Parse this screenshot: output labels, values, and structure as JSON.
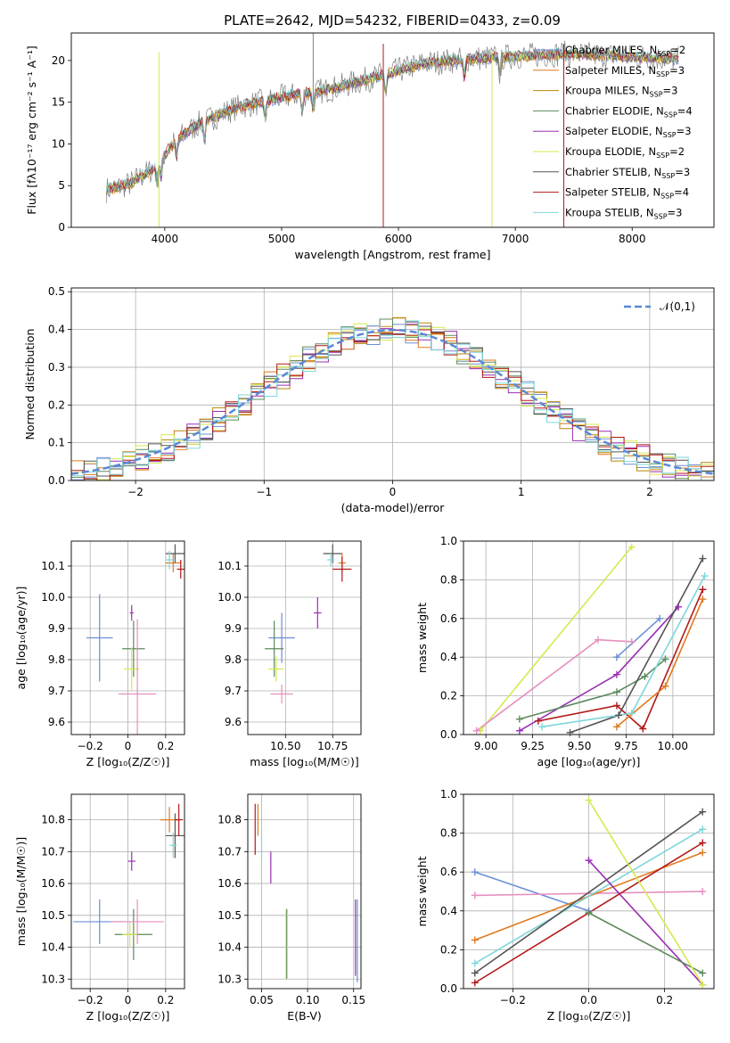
{
  "figure_title": "PLATE=2642, MJD=54232, FIBERID=0433, z=0.09",
  "colors": {
    "Chabrier MILES": "#6a8fd6",
    "Salpeter MILES": "#e07a1f",
    "Kroupa MILES": "#b8860b",
    "Chabrier ELODIE": "#5b8a5b",
    "Salpeter ELODIE": "#9a2fb3",
    "Kroupa ELODIE": "#d7e84e",
    "Chabrier STELIB": "#555555",
    "Salpeter STELIB": "#b31919",
    "Kroupa STELIB": "#7fd6dc",
    "pink": "#e68fbf",
    "gauss": "#5b88d6"
  },
  "chart_data": [
    {
      "id": "spectrum",
      "type": "line",
      "title": "PLATE=2642, MJD=54232, FIBERID=0433, z=0.09",
      "xlabel": "wavelength [Angstrom, rest frame]",
      "ylabel": "Flux [fλ10⁻¹⁷ erg cm⁻² s⁻¹ A⁻¹]",
      "xlim": [
        3200,
        8700
      ],
      "ylim": [
        0,
        23.3
      ],
      "xticks": [
        4000,
        5000,
        6000,
        7000,
        8000
      ],
      "yticks": [
        0,
        5,
        10,
        15,
        20
      ],
      "legend_position": "upper right",
      "legend": [
        {
          "label": "Chabrier MILES, N",
          "sub": "SSP",
          "suffix": "=2"
        },
        {
          "label": "Salpeter MILES, N",
          "sub": "SSP",
          "suffix": "=3"
        },
        {
          "label": "Kroupa MILES, N",
          "sub": "SSP",
          "suffix": "=3"
        },
        {
          "label": "Chabrier ELODIE, N",
          "sub": "SSP",
          "suffix": "=4"
        },
        {
          "label": "Salpeter ELODIE, N",
          "sub": "SSP",
          "suffix": "=3"
        },
        {
          "label": "Kroupa ELODIE, N",
          "sub": "SSP",
          "suffix": "=2"
        },
        {
          "label": "Chabrier STELIB, N",
          "sub": "SSP",
          "suffix": "=3"
        },
        {
          "label": "Salpeter STELIB, N",
          "sub": "SSP",
          "suffix": "=4"
        },
        {
          "label": "Kroupa STELIB, N",
          "sub": "SSP",
          "suffix": "=3"
        }
      ],
      "continuum": [
        [
          3500,
          4.5
        ],
        [
          3700,
          5.2
        ],
        [
          3900,
          7.0
        ],
        [
          4100,
          10.5
        ],
        [
          4300,
          12.5
        ],
        [
          4600,
          14.3
        ],
        [
          5000,
          15.6
        ],
        [
          5400,
          16.5
        ],
        [
          5800,
          18.0
        ],
        [
          6200,
          19.6
        ],
        [
          6600,
          20.2
        ],
        [
          7000,
          20.5
        ],
        [
          7400,
          20.8
        ],
        [
          7800,
          20.6
        ],
        [
          8200,
          20.3
        ],
        [
          8400,
          20.2
        ]
      ]
    },
    {
      "id": "residuals",
      "type": "line",
      "xlabel": "(data-model)/error",
      "ylabel": "Normed distribution",
      "xlim": [
        -2.5,
        2.5
      ],
      "ylim": [
        0,
        0.51
      ],
      "xticks": [
        -2,
        -1,
        0,
        1,
        2
      ],
      "yticks": [
        0.0,
        0.1,
        0.2,
        0.3,
        0.4,
        0.5
      ],
      "legend": "𝒩(0,1)",
      "series": [
        {
          "name": "𝒩(0,1)",
          "mu": 0,
          "sigma": 1
        }
      ]
    },
    {
      "id": "age_vs_Z",
      "type": "scatter",
      "xlabel": "Z [log₁₀(Z/Z☉)]",
      "ylabel": "age  [log₁₀(age/yr)]",
      "xlim": [
        -0.3,
        0.3
      ],
      "ylim": [
        9.56,
        10.18
      ],
      "xticks": [
        -0.2,
        0.0,
        0.2
      ],
      "yticks": [
        9.6,
        9.7,
        9.8,
        9.9,
        10.0,
        10.1
      ],
      "points": [
        {
          "c": "Chabrier MILES",
          "x": -0.15,
          "y": 9.87,
          "xe": 0.07,
          "ye": 0.14
        },
        {
          "c": "Salpeter MILES",
          "x": 0.24,
          "y": 10.11,
          "xe": 0.04,
          "ye": 0.03
        },
        {
          "c": "Chabrier ELODIE",
          "x": 0.03,
          "y": 9.835,
          "xe": 0.06,
          "ye": 0.09
        },
        {
          "c": "Salpeter ELODIE",
          "x": 0.02,
          "y": 9.95,
          "xe": 0.01,
          "ye": 0.025
        },
        {
          "c": "Kroupa ELODIE",
          "x": 0.02,
          "y": 9.77,
          "xe": 0.04,
          "ye": 0.07
        },
        {
          "c": "Chabrier STELIB",
          "x": 0.25,
          "y": 10.14,
          "xe": 0.05,
          "ye": 0.03
        },
        {
          "c": "Salpeter STELIB",
          "x": 0.28,
          "y": 10.09,
          "xe": 0.02,
          "ye": 0.03
        },
        {
          "c": "Kroupa STELIB",
          "x": 0.22,
          "y": 10.12,
          "xe": 0.02,
          "ye": 0.03
        },
        {
          "c": "pink",
          "x": 0.05,
          "y": 9.69,
          "xe": 0.1,
          "ye": 0.24
        }
      ]
    },
    {
      "id": "age_vs_mass",
      "type": "scatter",
      "xlabel": "mass [log₁₀(M/M☉)]",
      "xlim": [
        10.3,
        10.9
      ],
      "ylim": [
        9.56,
        10.18
      ],
      "xticks": [
        10.5,
        10.75
      ],
      "xticklabels": [
        "10.50",
        "10.75"
      ],
      "yticks": [
        9.6,
        9.7,
        9.8,
        9.9,
        10.0,
        10.1
      ],
      "points": [
        {
          "c": "Chabrier MILES",
          "x": 10.48,
          "y": 9.87,
          "xe": 0.07,
          "ye": 0.08
        },
        {
          "c": "Salpeter MILES",
          "x": 10.8,
          "y": 10.11,
          "xe": 0.02,
          "ye": 0.03
        },
        {
          "c": "Chabrier ELODIE",
          "x": 10.44,
          "y": 9.835,
          "xe": 0.05,
          "ye": 0.09
        },
        {
          "c": "Salpeter ELODIE",
          "x": 10.67,
          "y": 9.95,
          "xe": 0.02,
          "ye": 0.05
        },
        {
          "c": "Kroupa ELODIE",
          "x": 10.45,
          "y": 9.77,
          "xe": 0.04,
          "ye": 0.04
        },
        {
          "c": "Chabrier STELIB",
          "x": 10.75,
          "y": 10.14,
          "xe": 0.05,
          "ye": 0.03
        },
        {
          "c": "Salpeter STELIB",
          "x": 10.8,
          "y": 10.09,
          "xe": 0.05,
          "ye": 0.04
        },
        {
          "c": "Kroupa STELIB",
          "x": 10.74,
          "y": 10.12,
          "xe": 0.02,
          "ye": 0.02
        },
        {
          "c": "pink",
          "x": 10.48,
          "y": 9.69,
          "xe": 0.06,
          "ye": 0.03
        }
      ]
    },
    {
      "id": "mw_vs_age",
      "type": "line",
      "xlabel": "age  [log₁₀(age/yr)]",
      "ylabel": "mass weight",
      "xlim": [
        8.88,
        10.22
      ],
      "ylim": [
        0,
        1.0
      ],
      "xticks": [
        9.0,
        9.25,
        9.5,
        9.75,
        10.0
      ],
      "xticklabels": [
        "9.00",
        "9.25",
        "9.50",
        "9.75",
        "10.00"
      ],
      "yticks": [
        0.0,
        0.2,
        0.4,
        0.6,
        0.8,
        1.0
      ],
      "series": [
        {
          "c": "Kroupa ELODIE",
          "x": [
            8.97,
            9.78
          ],
          "y": [
            0.02,
            0.97
          ]
        },
        {
          "c": "pink",
          "x": [
            8.95,
            9.6,
            9.78
          ],
          "y": [
            0.02,
            0.49,
            0.48
          ]
        },
        {
          "c": "Salpeter ELODIE",
          "x": [
            9.18,
            9.7,
            10.03
          ],
          "y": [
            0.02,
            0.31,
            0.66
          ]
        },
        {
          "c": "Chabrier ELODIE",
          "x": [
            9.18,
            9.7,
            9.85,
            9.96
          ],
          "y": [
            0.08,
            0.22,
            0.3,
            0.39
          ]
        },
        {
          "c": "Salpeter STELIB",
          "x": [
            9.28,
            9.7,
            9.84,
            10.16
          ],
          "y": [
            0.07,
            0.15,
            0.03,
            0.75
          ]
        },
        {
          "c": "Chabrier STELIB",
          "x": [
            9.45,
            9.71,
            10.16
          ],
          "y": [
            0.01,
            0.1,
            0.91
          ]
        },
        {
          "c": "Kroupa STELIB",
          "x": [
            9.3,
            9.78,
            10.17
          ],
          "y": [
            0.04,
            0.11,
            0.82
          ]
        },
        {
          "c": "Salpeter MILES",
          "x": [
            9.7,
            9.96,
            10.16
          ],
          "y": [
            0.04,
            0.25,
            0.7
          ]
        },
        {
          "c": "Chabrier MILES",
          "x": [
            9.7,
            9.93
          ],
          "y": [
            0.4,
            0.6
          ]
        }
      ]
    },
    {
      "id": "mass_vs_Z",
      "type": "scatter",
      "xlabel": "Z [log₁₀(Z/Z☉)]",
      "ylabel": "mass [log₁₀(M/M☉)]",
      "xlim": [
        -0.3,
        0.3
      ],
      "ylim": [
        10.27,
        10.88
      ],
      "xticks": [
        -0.2,
        0.0,
        0.2
      ],
      "yticks": [
        10.3,
        10.4,
        10.5,
        10.6,
        10.7,
        10.8
      ],
      "points": [
        {
          "c": "Chabrier MILES",
          "x": -0.15,
          "y": 10.48,
          "xe": 0.14,
          "ye": 0.07
        },
        {
          "c": "Salpeter MILES",
          "x": 0.22,
          "y": 10.8,
          "xe": 0.05,
          "ye": 0.04
        },
        {
          "c": "Chabrier ELODIE",
          "x": 0.03,
          "y": 10.44,
          "xe": 0.1,
          "ye": 0.08
        },
        {
          "c": "Salpeter ELODIE",
          "x": 0.02,
          "y": 10.67,
          "xe": 0.02,
          "ye": 0.03
        },
        {
          "c": "Kroupa ELODIE",
          "x": 0.01,
          "y": 10.44,
          "xe": 0.04,
          "ye": 0.04
        },
        {
          "c": "Chabrier STELIB",
          "x": 0.25,
          "y": 10.75,
          "xe": 0.05,
          "ye": 0.07
        },
        {
          "c": "Salpeter STELIB",
          "x": 0.27,
          "y": 10.8,
          "xe": 0.02,
          "ye": 0.05
        },
        {
          "c": "Kroupa STELIB",
          "x": 0.24,
          "y": 10.72,
          "xe": 0.02,
          "ye": 0.04
        },
        {
          "c": "pink",
          "x": 0.05,
          "y": 10.48,
          "xe": 0.14,
          "ye": 0.07
        }
      ]
    },
    {
      "id": "mass_vs_ebv",
      "type": "scatter",
      "xlabel": "E(B-V)",
      "xlim": [
        0.035,
        0.158
      ],
      "ylim": [
        10.27,
        10.88
      ],
      "xticks": [
        0.05,
        0.1,
        0.15
      ],
      "xticklabels": [
        "0.05",
        "0.10",
        "0.15"
      ],
      "yticks": [
        10.3,
        10.4,
        10.5,
        10.6,
        10.7,
        10.8
      ],
      "points": [
        {
          "c": "Salpeter STELIB",
          "x": 0.043,
          "y": 10.77,
          "xe": 0,
          "ye": 0.08
        },
        {
          "c": "Salpeter MILES",
          "x": 0.046,
          "y": 10.8,
          "xe": 0,
          "ye": 0.05
        },
        {
          "c": "Kroupa STELIB",
          "x": 0.05,
          "y": 10.72,
          "xe": 0,
          "ye": 0.05
        },
        {
          "c": "Salpeter ELODIE",
          "x": 0.06,
          "y": 10.65,
          "xe": 0,
          "ye": 0.05
        },
        {
          "c": "Chabrier ELODIE",
          "x": 0.077,
          "y": 10.41,
          "xe": 0,
          "ye": 0.11
        },
        {
          "c": "Kroupa ELODIE",
          "x": 0.078,
          "y": 10.41,
          "xe": 0,
          "ye": 0.11
        },
        {
          "c": "Chabrier MILES",
          "x": 0.154,
          "y": 10.42,
          "xe": 0,
          "ye": 0.13
        },
        {
          "c": "Salpeter ELODIE",
          "x": 0.152,
          "y": 10.43,
          "xe": 0,
          "ye": 0.12
        }
      ]
    },
    {
      "id": "mw_vs_Z",
      "type": "line",
      "xlabel": "Z [log₁₀(Z/Z☉)]",
      "ylabel": "mass weight",
      "xlim": [
        -0.33,
        0.33
      ],
      "ylim": [
        0,
        1.0
      ],
      "xticks": [
        -0.2,
        0.0,
        0.2
      ],
      "xticklabels": [
        "−0.2",
        "0.0",
        "0.2"
      ],
      "yticks": [
        0.0,
        0.2,
        0.4,
        0.6,
        0.8,
        1.0
      ],
      "series": [
        {
          "c": "Chabrier MILES",
          "x": [
            -0.3,
            0.0
          ],
          "y": [
            0.6,
            0.4
          ]
        },
        {
          "c": "pink",
          "x": [
            -0.3,
            0.3
          ],
          "y": [
            0.48,
            0.5
          ]
        },
        {
          "c": "Salpeter MILES",
          "x": [
            -0.3,
            0.3
          ],
          "y": [
            0.25,
            0.7
          ]
        },
        {
          "c": "Kroupa STELIB",
          "x": [
            -0.3,
            0.3
          ],
          "y": [
            0.13,
            0.82
          ]
        },
        {
          "c": "Chabrier STELIB",
          "x": [
            -0.3,
            0.3
          ],
          "y": [
            0.08,
            0.91
          ]
        },
        {
          "c": "Salpeter STELIB",
          "x": [
            -0.3,
            0.3
          ],
          "y": [
            0.03,
            0.75
          ]
        },
        {
          "c": "Salpeter ELODIE",
          "x": [
            0.0,
            0.3
          ],
          "y": [
            0.66,
            0.02
          ]
        },
        {
          "c": "Chabrier ELODIE",
          "x": [
            0.0,
            0.3
          ],
          "y": [
            0.39,
            0.08
          ]
        },
        {
          "c": "Kroupa ELODIE",
          "x": [
            0.0,
            0.3
          ],
          "y": [
            0.97,
            0.02
          ]
        }
      ]
    }
  ]
}
